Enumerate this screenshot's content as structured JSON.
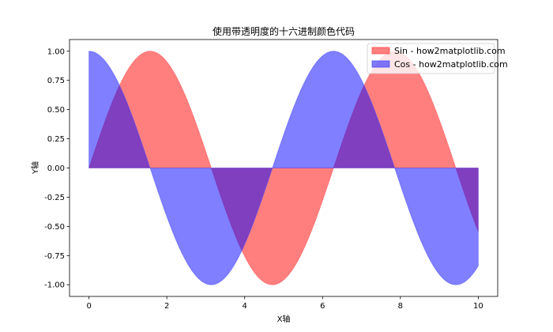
{
  "chart_data": {
    "type": "area",
    "title": "使用带透明度的十六进制颜色代码",
    "xlabel": "X轴",
    "ylabel": "Y轴",
    "xlim": [
      -0.5,
      10.5
    ],
    "ylim": [
      -1.1,
      1.1
    ],
    "xticks": [
      0,
      2,
      4,
      6,
      8,
      10
    ],
    "xtick_labels": [
      "0",
      "2",
      "4",
      "6",
      "8",
      "10"
    ],
    "yticks": [
      -1.0,
      -0.75,
      -0.5,
      -0.25,
      0.0,
      0.25,
      0.5,
      0.75,
      1.0
    ],
    "ytick_labels": [
      "-1.00",
      "-0.75",
      "-0.50",
      "-0.25",
      "0.00",
      "0.25",
      "0.50",
      "0.75",
      "1.00"
    ],
    "grid": false,
    "legend_position": "top-right",
    "x_domain": [
      0,
      10
    ],
    "series": [
      {
        "name": "Sin - how2matplotlib.com",
        "function": "sin",
        "fill_color": "#FF000080",
        "display_color": "#ff8080",
        "stroke_color": "#ff4d4d",
        "sample_points": [
          [
            0,
            0.0
          ],
          [
            1,
            0.84
          ],
          [
            2,
            0.91
          ],
          [
            3,
            0.14
          ],
          [
            4,
            -0.76
          ],
          [
            5,
            -0.96
          ],
          [
            6,
            -0.28
          ],
          [
            7,
            0.66
          ],
          [
            8,
            0.99
          ],
          [
            9,
            0.41
          ],
          [
            10,
            -0.54
          ]
        ]
      },
      {
        "name": "Cos - how2matplotlib.com",
        "function": "cos",
        "fill_color": "#0000FF80",
        "display_color": "#8080ff",
        "stroke_color": "#4d4dff",
        "sample_points": [
          [
            0,
            1.0
          ],
          [
            1,
            0.54
          ],
          [
            2,
            -0.42
          ],
          [
            3,
            -0.99
          ],
          [
            4,
            -0.65
          ],
          [
            5,
            0.28
          ],
          [
            6,
            0.96
          ],
          [
            7,
            0.75
          ],
          [
            8,
            -0.15
          ],
          [
            9,
            -0.91
          ],
          [
            10,
            -0.84
          ]
        ]
      }
    ]
  }
}
